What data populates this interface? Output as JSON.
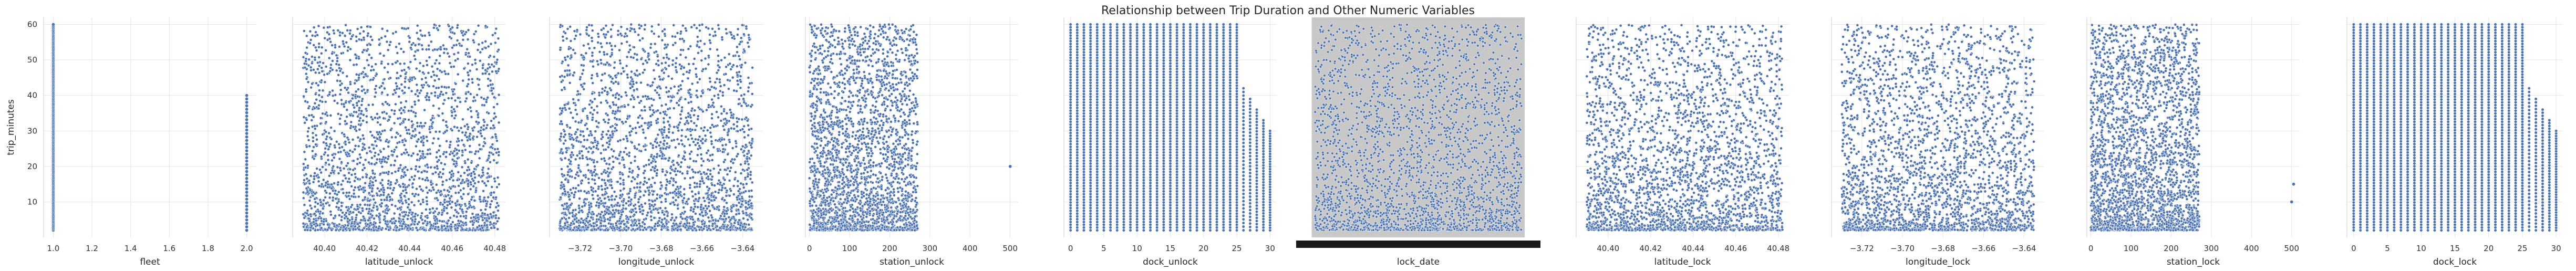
{
  "figure": {
    "title": "Relationship between Trip Duration and Other Numeric Variables",
    "point_color": "#4c72b0",
    "grid_color": "#e5e5e5",
    "axis_color": "#cccccc"
  },
  "chart_data": [
    {
      "type": "scatter",
      "xlabel": "fleet",
      "ylabel": "trip_minutes",
      "ylim": [
        0,
        62
      ],
      "xlim": [
        0.95,
        2.05
      ],
      "xticks": [
        1.0,
        1.2,
        1.4,
        1.6,
        1.8,
        2.0
      ],
      "xtick_labels": [
        "1.0",
        "1.2",
        "1.4",
        "1.6",
        "1.8",
        "2.0"
      ],
      "yticks": [
        10,
        20,
        30,
        40,
        50,
        60
      ],
      "ytick_labels": [
        "10",
        "20",
        "30",
        "40",
        "50",
        "60"
      ],
      "series": [
        {
          "x_values": [
            1.0,
            2.0
          ],
          "y_range": [
            [
              2,
              60
            ],
            [
              2,
              40
            ]
          ]
        }
      ],
      "grid": true
    },
    {
      "type": "scatter",
      "xlabel": "latitude_unlock",
      "ylabel": "",
      "ylim": [
        0,
        62
      ],
      "xlim": [
        40.385,
        40.485
      ],
      "xticks": [
        40.4,
        40.42,
        40.44,
        40.46,
        40.48
      ],
      "xtick_labels": [
        "40.40",
        "40.42",
        "40.44",
        "40.46",
        "40.48"
      ],
      "series": [
        {
          "x_range": [
            40.39,
            40.482
          ],
          "y_range": [
            2,
            60
          ]
        }
      ],
      "grid": true
    },
    {
      "type": "scatter",
      "xlabel": "longitude_unlock",
      "ylabel": "",
      "ylim": [
        0,
        62
      ],
      "xlim": [
        -3.735,
        -3.63
      ],
      "xticks": [
        -3.72,
        -3.7,
        -3.68,
        -3.66,
        -3.64
      ],
      "xtick_labels": [
        "−3.72",
        "−3.70",
        "−3.68",
        "−3.66",
        "−3.64"
      ],
      "series": [
        {
          "x_range": [
            -3.73,
            -3.635
          ],
          "y_range": [
            2,
            60
          ]
        }
      ],
      "grid": true
    },
    {
      "type": "scatter",
      "xlabel": "station_unlock",
      "ylabel": "",
      "ylim": [
        0,
        62
      ],
      "xlim": [
        -10,
        520
      ],
      "xticks": [
        0,
        100,
        200,
        300,
        400,
        500
      ],
      "xtick_labels": [
        "0",
        "100",
        "200",
        "300",
        "400",
        "500"
      ],
      "series": [
        {
          "x_range": [
            0,
            270
          ],
          "y_range": [
            2,
            60
          ],
          "outliers": [
            [
              500,
              20
            ]
          ]
        }
      ],
      "grid": true
    },
    {
      "type": "scatter",
      "xlabel": "dock_unlock",
      "ylabel": "",
      "ylim": [
        0,
        62
      ],
      "xlim": [
        -1,
        31
      ],
      "xticks": [
        0,
        5,
        10,
        15,
        20,
        25,
        30
      ],
      "xtick_labels": [
        "0",
        "5",
        "10",
        "15",
        "20",
        "25",
        "30"
      ],
      "series": [
        {
          "x_range": [
            0,
            30
          ],
          "discrete": true,
          "y_range": [
            2,
            60
          ]
        }
      ],
      "grid": true
    },
    {
      "type": "scatter",
      "xlabel": "lock_date",
      "ylabel": "",
      "ylim": [
        0,
        62
      ],
      "xtick_labels": "dense overlapping date labels",
      "background": "#c8c8c8",
      "series": [
        {
          "y_range": [
            2,
            60
          ]
        }
      ],
      "grid": false
    },
    {
      "type": "scatter",
      "xlabel": "latitude_lock",
      "ylabel": "",
      "ylim": [
        0,
        62
      ],
      "xlim": [
        40.385,
        40.485
      ],
      "xticks": [
        40.4,
        40.42,
        40.44,
        40.46,
        40.48
      ],
      "xtick_labels": [
        "40.40",
        "40.42",
        "40.44",
        "40.46",
        "40.48"
      ],
      "series": [
        {
          "x_range": [
            40.39,
            40.482
          ],
          "y_range": [
            2,
            60
          ]
        }
      ],
      "grid": true
    },
    {
      "type": "scatter",
      "xlabel": "longitude_lock",
      "ylabel": "",
      "ylim": [
        0,
        62
      ],
      "xlim": [
        -3.735,
        -3.63
      ],
      "xticks": [
        -3.72,
        -3.7,
        -3.68,
        -3.66,
        -3.64
      ],
      "xtick_labels": [
        "−3.72",
        "−3.70",
        "−3.68",
        "−3.66",
        "−3.64"
      ],
      "series": [
        {
          "x_range": [
            -3.73,
            -3.635
          ],
          "y_range": [
            2,
            60
          ]
        }
      ],
      "grid": true
    },
    {
      "type": "scatter",
      "xlabel": "station_lock",
      "ylabel": "",
      "ylim": [
        0,
        62
      ],
      "xlim": [
        -10,
        520
      ],
      "xticks": [
        0,
        100,
        200,
        300,
        400,
        500
      ],
      "xtick_labels": [
        "0",
        "100",
        "200",
        "300",
        "400",
        "500"
      ],
      "series": [
        {
          "x_range": [
            0,
            270
          ],
          "y_range": [
            2,
            60
          ],
          "outliers": [
            [
              500,
              10
            ],
            [
              505,
              15
            ]
          ]
        }
      ],
      "grid": true
    },
    {
      "type": "scatter",
      "xlabel": "dock_lock",
      "ylabel": "",
      "ylim": [
        0,
        62
      ],
      "xlim": [
        -1,
        31
      ],
      "xticks": [
        0,
        5,
        10,
        15,
        20,
        25,
        30
      ],
      "xtick_labels": [
        "0",
        "5",
        "10",
        "15",
        "20",
        "25",
        "30"
      ],
      "series": [
        {
          "x_range": [
            0,
            30
          ],
          "discrete": true,
          "y_range": [
            2,
            60
          ]
        }
      ],
      "grid": true
    }
  ]
}
